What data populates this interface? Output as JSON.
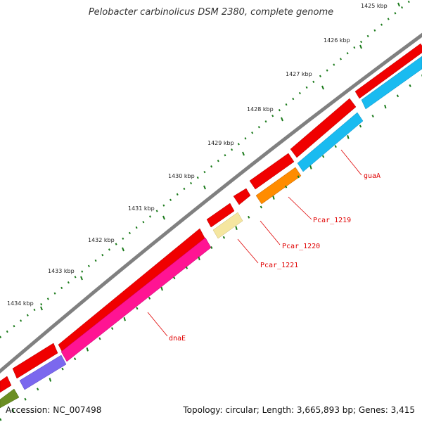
{
  "title": "Pelobacter carbinolicus DSM 2380, complete genome",
  "footer": {
    "accession": "Accession: NC_007498",
    "summary": "Topology: circular; Length: 3,665,893 bp; Genes: 3,415"
  },
  "ticks": [
    {
      "label": "1425 kbp",
      "kbp": 1425
    },
    {
      "label": "1426 kbp",
      "kbp": 1426
    },
    {
      "label": "1427 kbp",
      "kbp": 1427
    },
    {
      "label": "1428 kbp",
      "kbp": 1428
    },
    {
      "label": "1429 kbp",
      "kbp": 1429
    },
    {
      "label": "1430 kbp",
      "kbp": 1430
    },
    {
      "label": "1431 kbp",
      "kbp": 1431
    },
    {
      "label": "1432 kbp",
      "kbp": 1432
    },
    {
      "label": "1433 kbp",
      "kbp": 1433
    },
    {
      "label": "1434 kbp",
      "kbp": 1434
    }
  ],
  "genes": [
    {
      "label": "guaA",
      "color": "#19bbf0"
    },
    {
      "label": "Pcar_1219",
      "color": "#ff8c00"
    },
    {
      "label": "Pcar_1220",
      "color": "#f5e6a0"
    },
    {
      "label": "Pcar_1221",
      "color": "#e00000"
    },
    {
      "label": "dnaE",
      "color": "#ff1493"
    }
  ],
  "colors": {
    "backbone": "#808080",
    "cds": "#ff0000",
    "tick": "#1a7a1a",
    "label": "#e00000",
    "purple": "#7b68ee",
    "olive": "#6b8e23"
  }
}
